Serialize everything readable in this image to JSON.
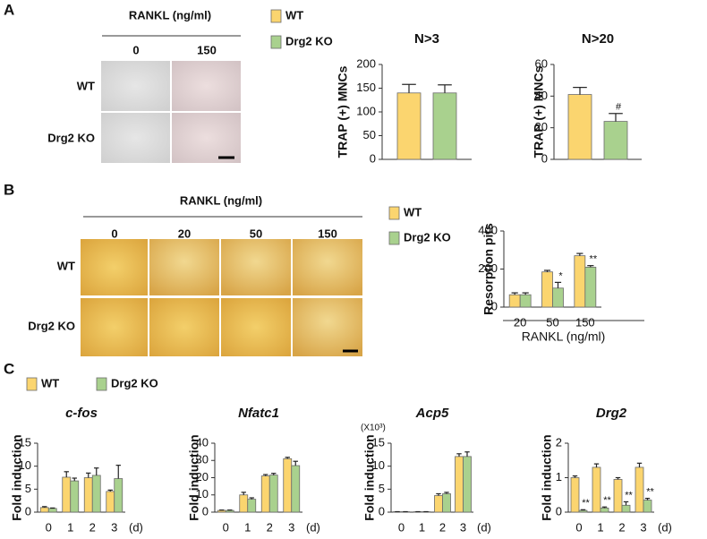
{
  "figure": {
    "panel_labels": [
      "A",
      "B",
      "C"
    ],
    "panel_a_images": {
      "header": "RANKL (ng/ml)",
      "columns": [
        "0",
        "150"
      ],
      "rows": [
        "WT",
        "Drg2 KO"
      ]
    },
    "panel_b_images": {
      "header": "RANKL  (ng/ml)",
      "columns": [
        "0",
        "20",
        "50",
        "150"
      ],
      "rows": [
        "WT",
        "Drg2 KO"
      ]
    }
  },
  "chart_data": [
    {
      "type": "bar",
      "title": "N>3",
      "ylabel": "TRAP (+) MNCs",
      "categories": [
        null
      ],
      "series": [
        {
          "name": "WT",
          "color": "#fbd56f",
          "values": [
            140
          ],
          "errors": [
            18
          ]
        },
        {
          "name": "Drg2 KO",
          "color": "#a9d18e",
          "values": [
            140
          ],
          "errors": [
            17
          ]
        }
      ],
      "ylim": [
        0,
        200
      ],
      "yticks": [
        0,
        50,
        100,
        150,
        200
      ],
      "legend": "vertical"
    },
    {
      "type": "bar",
      "title": "N>20",
      "ylabel": "TRAP (+) MNCs",
      "categories": [
        null
      ],
      "series": [
        {
          "name": "WT",
          "color": "#fbd56f",
          "values": [
            41
          ],
          "errors": [
            4.5
          ],
          "annotations": [
            null
          ]
        },
        {
          "name": "Drg2 KO",
          "color": "#a9d18e",
          "values": [
            24
          ],
          "errors": [
            5
          ],
          "annotations": [
            "#"
          ]
        }
      ],
      "ylim": [
        0,
        60
      ],
      "yticks": [
        0,
        20,
        40,
        60
      ]
    },
    {
      "type": "bar",
      "ylabel": "Resorption pits",
      "xlabel": "RANKL  (ng/ml)",
      "categories": [
        "20",
        "50",
        "150"
      ],
      "series": [
        {
          "name": "WT",
          "color": "#fbd56f",
          "values": [
            65,
            185,
            270
          ],
          "errors": [
            10,
            8,
            12
          ]
        },
        {
          "name": "Drg2 KO",
          "color": "#a9d18e",
          "values": [
            65,
            100,
            210
          ],
          "errors": [
            10,
            30,
            8
          ],
          "annotations": [
            null,
            "*",
            "**"
          ]
        }
      ],
      "ylim": [
        0,
        400
      ],
      "yticks": [
        0,
        200,
        400
      ],
      "legend": "vertical"
    },
    {
      "type": "bar",
      "title": "c-fos",
      "title_style": "italic",
      "ylabel": "Fold induction",
      "x_unit": "(d)",
      "categories": [
        "0",
        "1",
        "2",
        "3"
      ],
      "series": [
        {
          "name": "WT",
          "color": "#fbd56f",
          "values": [
            1.0,
            7.6,
            7.5,
            4.5
          ],
          "errors": [
            0.2,
            1.2,
            1.0,
            0.3
          ]
        },
        {
          "name": "Drg2 KO",
          "color": "#a9d18e",
          "values": [
            0.8,
            6.8,
            8.0,
            7.3
          ],
          "errors": [
            0.1,
            0.6,
            1.6,
            2.9
          ]
        }
      ],
      "ylim": [
        0,
        15
      ],
      "yticks": [
        0,
        5,
        10,
        15
      ],
      "legend": "horizontal"
    },
    {
      "type": "bar",
      "title": "Nfatc1",
      "title_style": "italic",
      "ylabel": "Fold induction",
      "x_unit": "(d)",
      "categories": [
        "0",
        "1",
        "2",
        "3"
      ],
      "series": [
        {
          "name": "WT",
          "color": "#fbd56f",
          "values": [
            1,
            10,
            21,
            31
          ],
          "errors": [
            0.2,
            1.5,
            0.8,
            0.8
          ]
        },
        {
          "name": "Drg2 KO",
          "color": "#a9d18e",
          "values": [
            1,
            7.5,
            21.5,
            27
          ],
          "errors": [
            0.2,
            0.8,
            1,
            2.5
          ]
        }
      ],
      "ylim": [
        0,
        40
      ],
      "yticks": [
        0,
        10,
        20,
        30,
        40
      ]
    },
    {
      "type": "bar",
      "title": "Acp5",
      "title_style": "italic",
      "ylabel": "Fold induction",
      "y_note": "(X10³)",
      "x_unit": "(d)",
      "categories": [
        "0",
        "1",
        "2",
        "3"
      ],
      "series": [
        {
          "name": "WT",
          "color": "#fbd56f",
          "values": [
            0.1,
            0.1,
            3.6,
            12.1
          ],
          "errors": [
            0,
            0,
            0.4,
            0.6
          ]
        },
        {
          "name": "Drg2 KO",
          "color": "#a9d18e",
          "values": [
            0.1,
            0.1,
            4.0,
            12.1
          ],
          "errors": [
            0,
            0,
            0.3,
            1.0
          ]
        }
      ],
      "ylim": [
        0,
        15
      ],
      "yticks": [
        0,
        5,
        10,
        15
      ]
    },
    {
      "type": "bar",
      "title": "Drg2",
      "title_style": "italic",
      "ylabel": "Fold induction",
      "x_unit": "(d)",
      "categories": [
        "0",
        "1",
        "2",
        "3"
      ],
      "series": [
        {
          "name": "WT",
          "color": "#fbd56f",
          "values": [
            1.0,
            1.3,
            0.95,
            1.3
          ],
          "errors": [
            0.05,
            0.1,
            0.05,
            0.12
          ]
        },
        {
          "name": "Drg2 KO",
          "color": "#a9d18e",
          "values": [
            0.05,
            0.12,
            0.2,
            0.35
          ],
          "errors": [
            0.02,
            0.03,
            0.1,
            0.05
          ],
          "annotations": [
            "**",
            "**",
            "**",
            "**"
          ]
        }
      ],
      "ylim": [
        0,
        2
      ],
      "yticks": [
        0,
        1,
        2
      ]
    }
  ]
}
